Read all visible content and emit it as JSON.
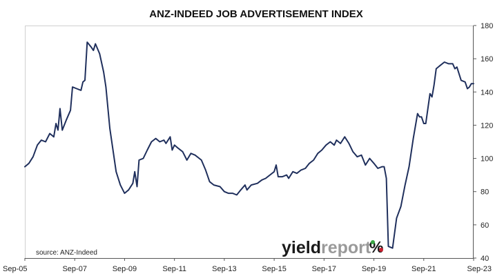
{
  "chart_data": {
    "type": "line",
    "title": "ANZ-INDEED JOB ADVERTISEMENT INDEX",
    "xlabel": "",
    "ylabel": "",
    "x_tick_labels": [
      "Sep-05",
      "Sep-07",
      "Sep-09",
      "Sep-11",
      "Sep-13",
      "Sep-15",
      "Sep-17",
      "Sep-19",
      "Sep-21",
      "Sep-23"
    ],
    "ylim": [
      40,
      180
    ],
    "y_ticks": [
      40,
      60,
      80,
      100,
      120,
      140,
      160,
      180
    ],
    "y_axis_position": "right",
    "grid": false,
    "line_color": "#1f2f5c",
    "source_note": "source: ANZ-Indeed",
    "logo": {
      "word1": "yield",
      "word2": "report",
      "symbol": "%"
    },
    "series": [
      {
        "values": [
          [
            2005.67,
            95
          ],
          [
            2005.83,
            97
          ],
          [
            2006.0,
            101
          ],
          [
            2006.17,
            108
          ],
          [
            2006.33,
            111
          ],
          [
            2006.5,
            110
          ],
          [
            2006.67,
            115
          ],
          [
            2006.83,
            113
          ],
          [
            2006.92,
            121
          ],
          [
            2007.0,
            117
          ],
          [
            2007.08,
            130
          ],
          [
            2007.17,
            117
          ],
          [
            2007.33,
            123
          ],
          [
            2007.5,
            129
          ],
          [
            2007.58,
            143
          ],
          [
            2007.75,
            142
          ],
          [
            2007.92,
            141
          ],
          [
            2008.0,
            146
          ],
          [
            2008.08,
            147
          ],
          [
            2008.17,
            170
          ],
          [
            2008.33,
            167
          ],
          [
            2008.42,
            165
          ],
          [
            2008.5,
            169
          ],
          [
            2008.67,
            163
          ],
          [
            2008.83,
            152
          ],
          [
            2008.92,
            143
          ],
          [
            2009.08,
            118
          ],
          [
            2009.33,
            92
          ],
          [
            2009.5,
            84
          ],
          [
            2009.67,
            79
          ],
          [
            2009.83,
            81
          ],
          [
            2010.0,
            85
          ],
          [
            2010.08,
            92
          ],
          [
            2010.17,
            83
          ],
          [
            2010.25,
            99
          ],
          [
            2010.42,
            100
          ],
          [
            2010.58,
            105
          ],
          [
            2010.75,
            110
          ],
          [
            2010.92,
            112
          ],
          [
            2011.08,
            110
          ],
          [
            2011.25,
            111
          ],
          [
            2011.33,
            109
          ],
          [
            2011.5,
            113
          ],
          [
            2011.58,
            105
          ],
          [
            2011.67,
            108
          ],
          [
            2011.83,
            106
          ],
          [
            2012.0,
            104
          ],
          [
            2012.17,
            99
          ],
          [
            2012.33,
            103
          ],
          [
            2012.5,
            102
          ],
          [
            2012.75,
            99
          ],
          [
            2012.92,
            93
          ],
          [
            2013.08,
            86
          ],
          [
            2013.25,
            84
          ],
          [
            2013.5,
            83
          ],
          [
            2013.67,
            80
          ],
          [
            2013.83,
            79
          ],
          [
            2014.0,
            79
          ],
          [
            2014.17,
            78
          ],
          [
            2014.33,
            81
          ],
          [
            2014.5,
            84
          ],
          [
            2014.58,
            81
          ],
          [
            2014.75,
            84
          ],
          [
            2015.0,
            85
          ],
          [
            2015.17,
            87
          ],
          [
            2015.33,
            88
          ],
          [
            2015.5,
            90
          ],
          [
            2015.67,
            92
          ],
          [
            2015.75,
            96
          ],
          [
            2015.83,
            89
          ],
          [
            2016.0,
            89
          ],
          [
            2016.17,
            90
          ],
          [
            2016.25,
            88
          ],
          [
            2016.42,
            92
          ],
          [
            2016.58,
            91
          ],
          [
            2016.75,
            93
          ],
          [
            2016.92,
            94
          ],
          [
            2017.08,
            97
          ],
          [
            2017.25,
            99
          ],
          [
            2017.42,
            103
          ],
          [
            2017.58,
            105
          ],
          [
            2017.75,
            108
          ],
          [
            2017.92,
            110
          ],
          [
            2018.08,
            108
          ],
          [
            2018.17,
            111
          ],
          [
            2018.33,
            109
          ],
          [
            2018.5,
            113
          ],
          [
            2018.67,
            109
          ],
          [
            2018.83,
            104
          ],
          [
            2019.0,
            101
          ],
          [
            2019.17,
            102
          ],
          [
            2019.33,
            96
          ],
          [
            2019.5,
            100
          ],
          [
            2019.67,
            97
          ],
          [
            2019.83,
            94
          ],
          [
            2020.0,
            95
          ],
          [
            2020.08,
            95
          ],
          [
            2020.17,
            88
          ],
          [
            2020.25,
            47
          ],
          [
            2020.42,
            46
          ],
          [
            2020.58,
            64
          ],
          [
            2020.75,
            71
          ],
          [
            2020.92,
            84
          ],
          [
            2021.08,
            95
          ],
          [
            2021.25,
            112
          ],
          [
            2021.42,
            127
          ],
          [
            2021.5,
            125
          ],
          [
            2021.58,
            125
          ],
          [
            2021.67,
            121
          ],
          [
            2021.75,
            121
          ],
          [
            2021.92,
            139
          ],
          [
            2022.0,
            137
          ],
          [
            2022.08,
            144
          ],
          [
            2022.17,
            154
          ],
          [
            2022.33,
            156
          ],
          [
            2022.5,
            158
          ],
          [
            2022.67,
            157
          ],
          [
            2022.83,
            157
          ],
          [
            2022.92,
            154
          ],
          [
            2023.0,
            155
          ],
          [
            2023.17,
            147
          ],
          [
            2023.33,
            146
          ],
          [
            2023.42,
            142
          ],
          [
            2023.5,
            143
          ],
          [
            2023.58,
            145
          ],
          [
            2023.67,
            145
          ]
        ]
      }
    ]
  }
}
